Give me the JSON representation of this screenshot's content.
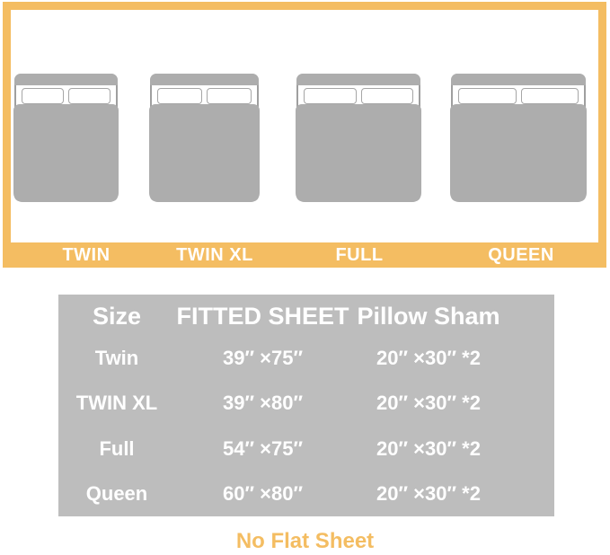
{
  "hero": {
    "beds": [
      {
        "label": "TWIN"
      },
      {
        "label": "TWIN XL"
      },
      {
        "label": "FULL"
      },
      {
        "label": "QUEEN"
      }
    ]
  },
  "table": {
    "headers": [
      "Size",
      "FITTED SHEET",
      "Pillow Sham"
    ],
    "rows": [
      {
        "size": "Twin",
        "fitted_sheet": "39″ ×75″",
        "pillow_sham": "20″ ×30″ *2"
      },
      {
        "size": "TWIN XL",
        "fitted_sheet": "39″ ×80″",
        "pillow_sham": "20″ ×30″ *2"
      },
      {
        "size": "Full",
        "fitted_sheet": "54″ ×75″",
        "pillow_sham": "20″ ×30″ *2"
      },
      {
        "size": "Queen",
        "fitted_sheet": "60″ ×80″",
        "pillow_sham": "20″ ×30″ *2"
      }
    ]
  },
  "footer": {
    "note": "No Flat Sheet"
  },
  "colors": {
    "accent_orange": "#F4BD62",
    "table_gray": "#BDBDBD",
    "bed_gray": "#ADADAD",
    "text_white": "#FFFFFF"
  }
}
